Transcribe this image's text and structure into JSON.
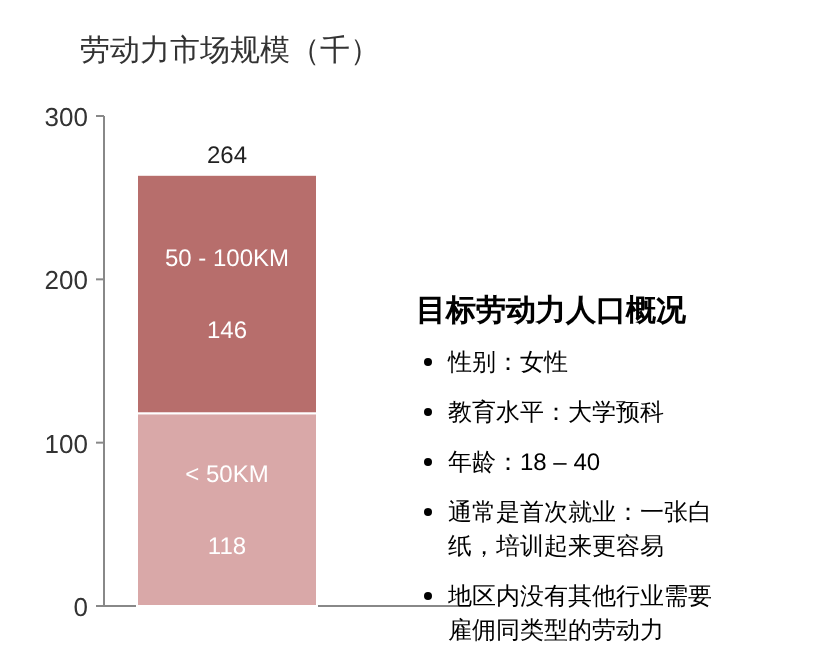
{
  "chart_data": [
    {
      "type": "bar",
      "title": "劳动力市场规模（千）",
      "categories": [
        null
      ],
      "stacked": true,
      "data_labels": true,
      "totals": [
        "264"
      ],
      "ylim": [
        0,
        300
      ],
      "yticks": [
        0,
        100,
        200,
        300
      ],
      "grid": false,
      "series": [
        {
          "name": "< 50KM",
          "color": "#d9a8a8",
          "values": [
            118
          ]
        },
        {
          "name": "50 - 100KM",
          "color": "#b76e6c",
          "values": [
            146
          ]
        }
      ]
    },
    {
      "type": "other",
      "title": "目标劳动力人口概况",
      "annotations": [
        "性别：女性",
        "教育水平：大学预科",
        "年龄：18 – 40",
        "通常是首次就业：一张白纸，培训起来更容易",
        "地区内没有其他行业需要雇佣同类型的劳动力"
      ]
    }
  ]
}
